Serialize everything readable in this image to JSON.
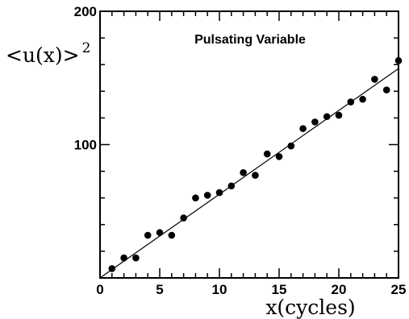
{
  "chart_data": {
    "type": "scatter",
    "title": "Pulsating Variable",
    "xlabel": "x(cycles)",
    "ylabel": "<u(x)>",
    "ylabel_exponent": "2",
    "xlim": [
      0,
      25
    ],
    "ylim": [
      0,
      200
    ],
    "x_ticks_labeled": [
      "0",
      "5",
      "10",
      "15",
      "20",
      "25"
    ],
    "y_ticks_labeled": [
      "100",
      "200"
    ],
    "grid": false,
    "legend": "none",
    "series": [
      {
        "points": [
          {
            "x": 1,
            "y": 7
          },
          {
            "x": 2,
            "y": 15
          },
          {
            "x": 3,
            "y": 15
          },
          {
            "x": 4,
            "y": 32
          },
          {
            "x": 5,
            "y": 34
          },
          {
            "x": 6,
            "y": 32
          },
          {
            "x": 7,
            "y": 45
          },
          {
            "x": 8,
            "y": 60
          },
          {
            "x": 9,
            "y": 62
          },
          {
            "x": 10,
            "y": 64
          },
          {
            "x": 11,
            "y": 69
          },
          {
            "x": 12,
            "y": 79
          },
          {
            "x": 13,
            "y": 77
          },
          {
            "x": 14,
            "y": 93
          },
          {
            "x": 15,
            "y": 91
          },
          {
            "x": 16,
            "y": 99
          },
          {
            "x": 17,
            "y": 112
          },
          {
            "x": 18,
            "y": 117
          },
          {
            "x": 19,
            "y": 121
          },
          {
            "x": 20,
            "y": 122
          },
          {
            "x": 21,
            "y": 132
          },
          {
            "x": 22,
            "y": 134
          },
          {
            "x": 23,
            "y": 149
          },
          {
            "x": 24,
            "y": 141
          },
          {
            "x": 25,
            "y": 163
          }
        ]
      }
    ],
    "fit_line": {
      "from": {
        "x": 0,
        "y": 0
      },
      "to": {
        "x": 25,
        "y": 157
      }
    },
    "colors": {
      "marker": "#000000",
      "line": "#000000"
    }
  }
}
